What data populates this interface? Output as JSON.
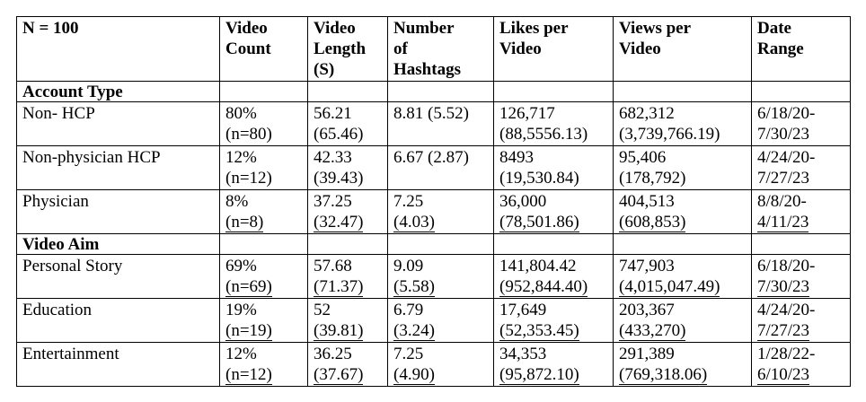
{
  "header": {
    "n": "N = 100",
    "video_count": [
      "Video",
      "Count"
    ],
    "video_length": [
      "Video",
      "Length",
      "(S)"
    ],
    "hashtags": [
      "Number",
      "of",
      "Hashtags"
    ],
    "likes": [
      "Likes per",
      "Video"
    ],
    "views": [
      "Views per",
      "Video"
    ],
    "date_range": [
      "Date",
      "Range"
    ]
  },
  "sections": {
    "account_type": "Account Type",
    "video_aim": "Video Aim"
  },
  "rows": {
    "non_hcp": {
      "label": "Non- HCP",
      "count": [
        "80%",
        "(n=80)"
      ],
      "length": [
        "56.21",
        "(65.46)"
      ],
      "hashtags": [
        "8.81 (5.52)",
        ""
      ],
      "likes": [
        "126,717",
        "(88,5556.13)"
      ],
      "views": [
        "682,312",
        "(3,739,766.19)"
      ],
      "date": [
        "6/18/20-",
        "7/30/23"
      ]
    },
    "non_physician_hcp": {
      "label": "Non-physician HCP",
      "count": [
        "12%",
        "(n=12)"
      ],
      "length": [
        "42.33",
        "(39.43)"
      ],
      "hashtags": [
        "6.67 (2.87)",
        ""
      ],
      "likes": [
        "8493",
        "(19,530.84)"
      ],
      "views": [
        "95,406",
        "(178,792)"
      ],
      "date": [
        "4/24/20-",
        "7/27/23"
      ]
    },
    "physician": {
      "label": "Physician",
      "count": [
        "8%",
        "(n=8)"
      ],
      "length": [
        "37.25",
        "(32.47)"
      ],
      "hashtags": [
        "7.25",
        "(4.03)"
      ],
      "likes": [
        "36,000",
        "(78,501.86)"
      ],
      "views": [
        "404,513",
        "(608,853)"
      ],
      "date": [
        "8/8/20-",
        "4/11/23"
      ]
    },
    "personal_story": {
      "label": "Personal Story",
      "count": [
        "69%",
        "(n=69)"
      ],
      "length": [
        "57.68",
        "(71.37)"
      ],
      "hashtags": [
        "9.09",
        "(5.58)"
      ],
      "likes": [
        "141,804.42",
        "(952,844.40)"
      ],
      "views": [
        "747,903",
        "(4,015,047.49)"
      ],
      "date": [
        "6/18/20-",
        "7/30/23"
      ]
    },
    "education": {
      "label": "Education",
      "count": [
        "19%",
        "(n=19)"
      ],
      "length": [
        "52",
        "(39.81)"
      ],
      "hashtags": [
        "6.79",
        "(3.24)"
      ],
      "likes": [
        "17,649",
        "(52,353.45)"
      ],
      "views": [
        "203,367",
        "(433,270)"
      ],
      "date": [
        "4/24/20-",
        "7/27/23"
      ]
    },
    "entertainment": {
      "label": "Entertainment",
      "count": [
        "12%",
        "(n=12)"
      ],
      "length": [
        "36.25",
        "(37.67)"
      ],
      "hashtags": [
        "7.25",
        "(4.90)"
      ],
      "likes": [
        "34,353",
        "(95,872.10)"
      ],
      "views": [
        "291,389",
        "(769,318.06)"
      ],
      "date": [
        "1/28/22-",
        "6/10/23"
      ]
    }
  }
}
